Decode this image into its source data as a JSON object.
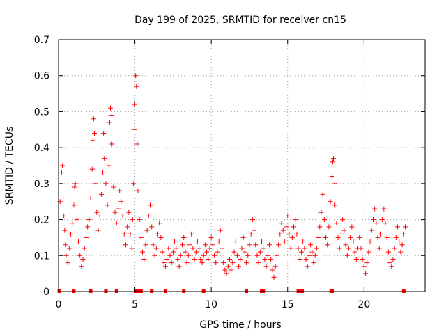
{
  "chart_data": {
    "type": "scatter",
    "title": "Day 199 of 2025, SRMTID for receiver cn15",
    "xlabel": "GPS time / hours",
    "ylabel": "SRMTID / TECUs",
    "xlim": [
      0,
      24
    ],
    "ylim": [
      0,
      0.7
    ],
    "xticks": [
      0,
      5,
      10,
      15,
      20
    ],
    "yticks": [
      0,
      0.1,
      0.2,
      0.3,
      0.4,
      0.5,
      0.6,
      0.7
    ],
    "xtick_labels": [
      "0",
      "5",
      "10",
      "15",
      "20"
    ],
    "ytick_labels": [
      "0",
      "0.1",
      "0.2",
      "0.3",
      "0.4",
      "0.5",
      "0.6",
      "0.7"
    ],
    "grid": true,
    "marker": "+",
    "color": "#ff0000",
    "series": [
      {
        "name": "SRMTID",
        "points": [
          [
            0.1,
            0.25
          ],
          [
            0.2,
            0.33
          ],
          [
            0.25,
            0.35
          ],
          [
            0.3,
            0.26
          ],
          [
            0.35,
            0.21
          ],
          [
            0.4,
            0.17
          ],
          [
            0.45,
            0.13
          ],
          [
            0.5,
            0.1
          ],
          [
            0.6,
            0.08
          ],
          [
            0.7,
            0.12
          ],
          [
            0.8,
            0.16
          ],
          [
            0.9,
            0.19
          ],
          [
            1.0,
            0.24
          ],
          [
            1.05,
            0.29
          ],
          [
            1.1,
            0.3
          ],
          [
            1.2,
            0.2
          ],
          [
            1.3,
            0.14
          ],
          [
            1.4,
            0.1
          ],
          [
            1.5,
            0.07
          ],
          [
            1.6,
            0.09
          ],
          [
            1.7,
            0.12
          ],
          [
            1.8,
            0.15
          ],
          [
            1.9,
            0.18
          ],
          [
            2.0,
            0.2
          ],
          [
            2.1,
            0.26
          ],
          [
            2.2,
            0.34
          ],
          [
            2.25,
            0.42
          ],
          [
            2.3,
            0.48
          ],
          [
            2.35,
            0.44
          ],
          [
            2.4,
            0.3
          ],
          [
            2.5,
            0.22
          ],
          [
            2.6,
            0.17
          ],
          [
            2.7,
            0.21
          ],
          [
            2.8,
            0.27
          ],
          [
            2.9,
            0.33
          ],
          [
            2.95,
            0.44
          ],
          [
            3.0,
            0.37
          ],
          [
            3.1,
            0.3
          ],
          [
            3.2,
            0.24
          ],
          [
            3.3,
            0.35
          ],
          [
            3.35,
            0.47
          ],
          [
            3.4,
            0.51
          ],
          [
            3.45,
            0.49
          ],
          [
            3.5,
            0.41
          ],
          [
            3.6,
            0.29
          ],
          [
            3.7,
            0.22
          ],
          [
            3.8,
            0.19
          ],
          [
            3.9,
            0.23
          ],
          [
            4.0,
            0.28
          ],
          [
            4.1,
            0.25
          ],
          [
            4.2,
            0.21
          ],
          [
            4.3,
            0.16
          ],
          [
            4.4,
            0.13
          ],
          [
            4.5,
            0.18
          ],
          [
            4.6,
            0.22
          ],
          [
            4.7,
            0.16
          ],
          [
            4.8,
            0.12
          ],
          [
            4.85,
            0.2
          ],
          [
            4.9,
            0.3
          ],
          [
            4.95,
            0.45
          ],
          [
            5.0,
            0.52
          ],
          [
            5.05,
            0.6
          ],
          [
            5.1,
            0.57
          ],
          [
            5.15,
            0.41
          ],
          [
            5.2,
            0.28
          ],
          [
            5.3,
            0.2
          ],
          [
            5.4,
            0.15
          ],
          [
            5.5,
            0.11
          ],
          [
            5.6,
            0.09
          ],
          [
            5.7,
            0.13
          ],
          [
            5.8,
            0.17
          ],
          [
            5.9,
            0.21
          ],
          [
            6.0,
            0.24
          ],
          [
            6.1,
            0.18
          ],
          [
            6.2,
            0.13
          ],
          [
            6.3,
            0.1
          ],
          [
            6.4,
            0.12
          ],
          [
            6.5,
            0.16
          ],
          [
            6.6,
            0.19
          ],
          [
            6.7,
            0.15
          ],
          [
            6.8,
            0.11
          ],
          [
            6.9,
            0.08
          ],
          [
            7.0,
            0.07
          ],
          [
            7.1,
            0.09
          ],
          [
            7.2,
            0.12
          ],
          [
            7.3,
            0.1
          ],
          [
            7.4,
            0.08
          ],
          [
            7.5,
            0.11
          ],
          [
            7.6,
            0.14
          ],
          [
            7.7,
            0.12
          ],
          [
            7.8,
            0.09
          ],
          [
            7.9,
            0.07
          ],
          [
            8.0,
            0.1
          ],
          [
            8.1,
            0.13
          ],
          [
            8.2,
            0.15
          ],
          [
            8.3,
            0.11
          ],
          [
            8.4,
            0.08
          ],
          [
            8.5,
            0.1
          ],
          [
            8.6,
            0.13
          ],
          [
            8.7,
            0.16
          ],
          [
            8.8,
            0.12
          ],
          [
            8.9,
            0.09
          ],
          [
            9.0,
            0.11
          ],
          [
            9.1,
            0.14
          ],
          [
            9.2,
            0.12
          ],
          [
            9.3,
            0.09
          ],
          [
            9.4,
            0.08
          ],
          [
            9.5,
            0.1
          ],
          [
            9.6,
            0.13
          ],
          [
            9.7,
            0.11
          ],
          [
            9.8,
            0.09
          ],
          [
            9.9,
            0.12
          ],
          [
            10.0,
            0.15
          ],
          [
            10.1,
            0.13
          ],
          [
            10.2,
            0.1
          ],
          [
            10.3,
            0.08
          ],
          [
            10.4,
            0.11
          ],
          [
            10.5,
            0.14
          ],
          [
            10.6,
            0.17
          ],
          [
            10.7,
            0.12
          ],
          [
            10.8,
            0.08
          ],
          [
            10.9,
            0.06
          ],
          [
            11.0,
            0.05
          ],
          [
            11.1,
            0.07
          ],
          [
            11.2,
            0.09
          ],
          [
            11.3,
            0.06
          ],
          [
            11.4,
            0.08
          ],
          [
            11.5,
            0.11
          ],
          [
            11.6,
            0.14
          ],
          [
            11.7,
            0.1
          ],
          [
            11.8,
            0.07
          ],
          [
            11.9,
            0.09
          ],
          [
            12.0,
            0.12
          ],
          [
            12.1,
            0.15
          ],
          [
            12.2,
            0.11
          ],
          [
            12.3,
            0.08
          ],
          [
            12.4,
            0.1
          ],
          [
            12.5,
            0.13
          ],
          [
            12.6,
            0.16
          ],
          [
            12.7,
            0.2
          ],
          [
            12.8,
            0.17
          ],
          [
            12.9,
            0.13
          ],
          [
            13.0,
            0.1
          ],
          [
            13.1,
            0.08
          ],
          [
            13.2,
            0.11
          ],
          [
            13.3,
            0.14
          ],
          [
            13.4,
            0.12
          ],
          [
            13.5,
            0.09
          ],
          [
            13.6,
            0.07
          ],
          [
            13.7,
            0.1
          ],
          [
            13.8,
            0.13
          ],
          [
            13.9,
            0.09
          ],
          [
            14.0,
            0.06
          ],
          [
            14.1,
            0.04
          ],
          [
            14.2,
            0.07
          ],
          [
            14.3,
            0.1
          ],
          [
            14.4,
            0.13
          ],
          [
            14.5,
            0.16
          ],
          [
            14.6,
            0.19
          ],
          [
            14.7,
            0.17
          ],
          [
            14.8,
            0.14
          ],
          [
            14.9,
            0.18
          ],
          [
            15.0,
            0.21
          ],
          [
            15.1,
            0.16
          ],
          [
            15.2,
            0.12
          ],
          [
            15.3,
            0.15
          ],
          [
            15.4,
            0.18
          ],
          [
            15.5,
            0.2
          ],
          [
            15.6,
            0.16
          ],
          [
            15.7,
            0.12
          ],
          [
            15.8,
            0.09
          ],
          [
            15.9,
            0.11
          ],
          [
            16.0,
            0.14
          ],
          [
            16.1,
            0.12
          ],
          [
            16.2,
            0.09
          ],
          [
            16.3,
            0.07
          ],
          [
            16.4,
            0.1
          ],
          [
            16.5,
            0.13
          ],
          [
            16.6,
            0.11
          ],
          [
            16.7,
            0.08
          ],
          [
            16.8,
            0.1
          ],
          [
            16.9,
            0.12
          ],
          [
            17.0,
            0.15
          ],
          [
            17.1,
            0.18
          ],
          [
            17.2,
            0.22
          ],
          [
            17.3,
            0.27
          ],
          [
            17.4,
            0.2
          ],
          [
            17.5,
            0.15
          ],
          [
            17.6,
            0.13
          ],
          [
            17.7,
            0.18
          ],
          [
            17.8,
            0.25
          ],
          [
            17.9,
            0.32
          ],
          [
            17.95,
            0.36
          ],
          [
            18.0,
            0.37
          ],
          [
            18.05,
            0.3
          ],
          [
            18.1,
            0.24
          ],
          [
            18.2,
            0.19
          ],
          [
            18.3,
            0.15
          ],
          [
            18.4,
            0.12
          ],
          [
            18.5,
            0.16
          ],
          [
            18.6,
            0.2
          ],
          [
            18.7,
            0.17
          ],
          [
            18.8,
            0.13
          ],
          [
            18.9,
            0.1
          ],
          [
            19.0,
            0.12
          ],
          [
            19.1,
            0.15
          ],
          [
            19.2,
            0.18
          ],
          [
            19.3,
            0.14
          ],
          [
            19.4,
            0.11
          ],
          [
            19.5,
            0.09
          ],
          [
            19.6,
            0.12
          ],
          [
            19.7,
            0.15
          ],
          [
            19.8,
            0.12
          ],
          [
            19.9,
            0.09
          ],
          [
            20.0,
            0.07
          ],
          [
            20.1,
            0.05
          ],
          [
            20.2,
            0.08
          ],
          [
            20.3,
            0.11
          ],
          [
            20.4,
            0.14
          ],
          [
            20.5,
            0.17
          ],
          [
            20.6,
            0.2
          ],
          [
            20.7,
            0.23
          ],
          [
            20.8,
            0.19
          ],
          [
            20.9,
            0.15
          ],
          [
            21.0,
            0.12
          ],
          [
            21.1,
            0.16
          ],
          [
            21.2,
            0.2
          ],
          [
            21.3,
            0.23
          ],
          [
            21.4,
            0.19
          ],
          [
            21.5,
            0.15
          ],
          [
            21.6,
            0.11
          ],
          [
            21.7,
            0.08
          ],
          [
            21.8,
            0.07
          ],
          [
            21.9,
            0.09
          ],
          [
            22.0,
            0.12
          ],
          [
            22.1,
            0.15
          ],
          [
            22.2,
            0.18
          ],
          [
            22.3,
            0.14
          ],
          [
            22.4,
            0.11
          ],
          [
            22.5,
            0.13
          ],
          [
            22.6,
            0.16
          ],
          [
            22.7,
            0.18
          ]
        ]
      }
    ],
    "baseline_markers": [
      0.05,
      1.0,
      2.1,
      3.1,
      3.8,
      5.05,
      5.15,
      5.4,
      6.1,
      7.0,
      8.2,
      9.5,
      12.3,
      13.3,
      13.4,
      15.7,
      15.95,
      17.85,
      17.95,
      22.6
    ]
  }
}
